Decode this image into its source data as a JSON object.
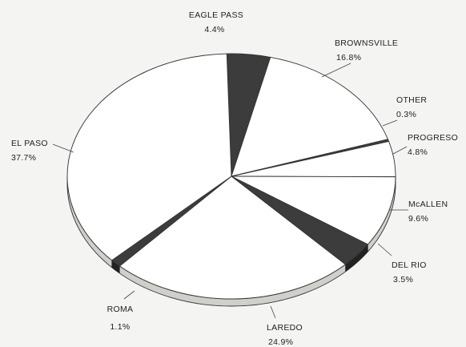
{
  "chart_data": {
    "type": "pie",
    "title": "",
    "slices": [
      {
        "label": "EAGLE PASS",
        "value": 4.4,
        "value_text": "4.4%",
        "color": "#3c3c3c"
      },
      {
        "label": "BROWNSVILLE",
        "value": 16.8,
        "value_text": "16.8%",
        "color": "#ffffff"
      },
      {
        "label": "OTHER",
        "value": 0.3,
        "value_text": "0.3%",
        "color": "#3c3c3c"
      },
      {
        "label": "PROGRESO",
        "value": 4.8,
        "value_text": "4.8%",
        "color": "#ffffff"
      },
      {
        "label": "McALLEN",
        "value": 9.6,
        "value_text": "9.6%",
        "color": "#ffffff"
      },
      {
        "label": "DEL RIO",
        "value": 3.5,
        "value_text": "3.5%",
        "color": "#3c3c3c"
      },
      {
        "label": "LAREDO",
        "value": 24.9,
        "value_text": "24.9%",
        "color": "#ffffff"
      },
      {
        "label": "ROMA",
        "value": 1.1,
        "value_text": "1.1%",
        "color": "#3c3c3c"
      },
      {
        "label": "EL PASO",
        "value": 37.7,
        "value_text": "37.7%",
        "color": "#ffffff"
      }
    ],
    "style": "3d-tilted"
  }
}
